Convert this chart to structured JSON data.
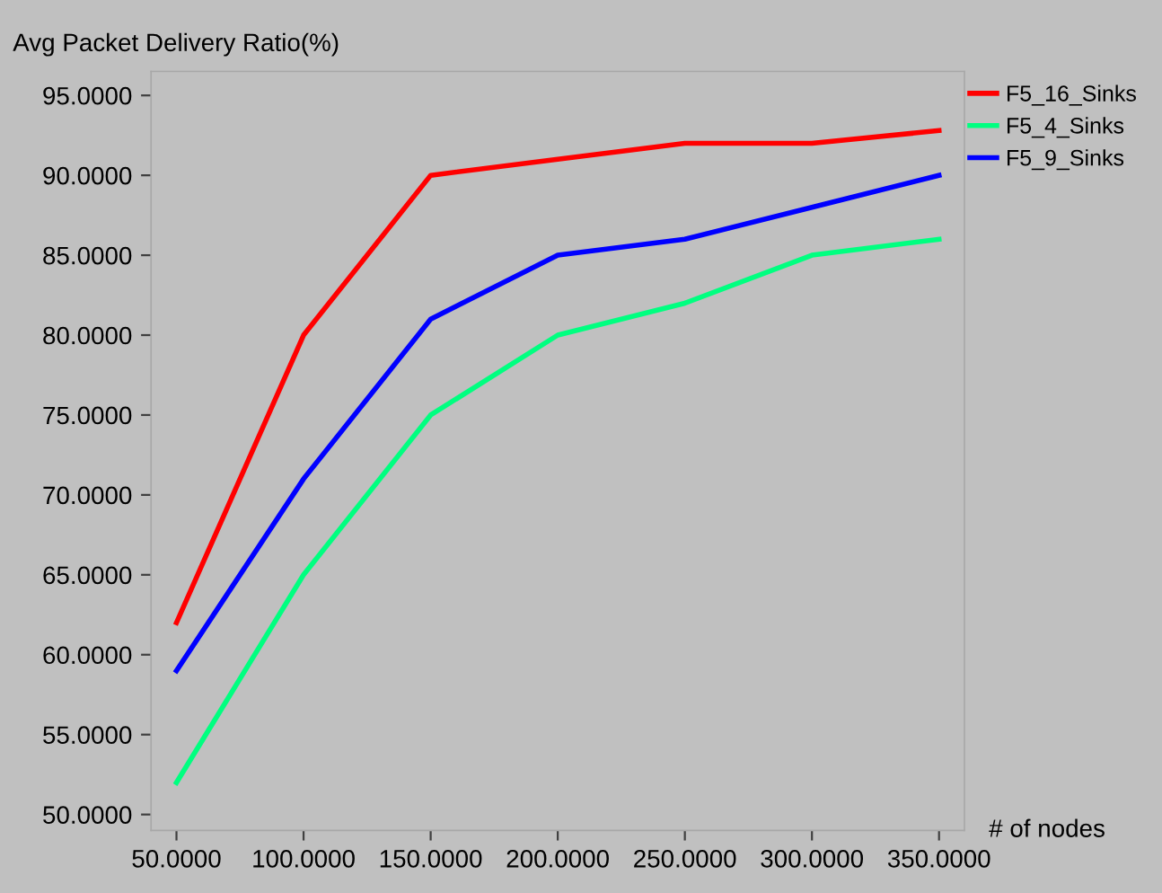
{
  "chart_data": {
    "type": "line",
    "ylabel": "Avg Packet Delivery Ratio(%)",
    "xlabel": "# of nodes",
    "x": [
      50,
      100,
      150,
      200,
      250,
      300,
      350
    ],
    "series": [
      {
        "name": "F5_16_Sinks",
        "color": "#ff0000",
        "values": [
          62,
          80,
          90,
          91,
          92,
          92,
          92.8
        ]
      },
      {
        "name": "F5_4_Sinks",
        "color": "#00ff80",
        "values": [
          52,
          65,
          75,
          80,
          82,
          85,
          86
        ]
      },
      {
        "name": "F5_9_Sinks",
        "color": "#0000ff",
        "values": [
          59,
          71,
          81,
          85,
          86,
          88,
          90
        ]
      }
    ],
    "xlim": [
      40,
      360
    ],
    "ylim": [
      49,
      96.5
    ],
    "xticks": [
      {
        "value": 50,
        "label": "50.0000"
      },
      {
        "value": 100,
        "label": "100.0000"
      },
      {
        "value": 150,
        "label": "150.0000"
      },
      {
        "value": 200,
        "label": "200.0000"
      },
      {
        "value": 250,
        "label": "250.0000"
      },
      {
        "value": 300,
        "label": "300.0000"
      },
      {
        "value": 350,
        "label": "350.0000"
      }
    ],
    "yticks": [
      {
        "value": 50,
        "label": "50.0000"
      },
      {
        "value": 55,
        "label": "55.0000"
      },
      {
        "value": 60,
        "label": "60.0000"
      },
      {
        "value": 65,
        "label": "65.0000"
      },
      {
        "value": 70,
        "label": "70.0000"
      },
      {
        "value": 75,
        "label": "75.0000"
      },
      {
        "value": 80,
        "label": "80.0000"
      },
      {
        "value": 85,
        "label": "85.0000"
      },
      {
        "value": 90,
        "label": "90.0000"
      },
      {
        "value": 95,
        "label": "95.0000"
      }
    ],
    "grid": false,
    "legend": "top right",
    "marker": "none",
    "line_style": "solid"
  }
}
